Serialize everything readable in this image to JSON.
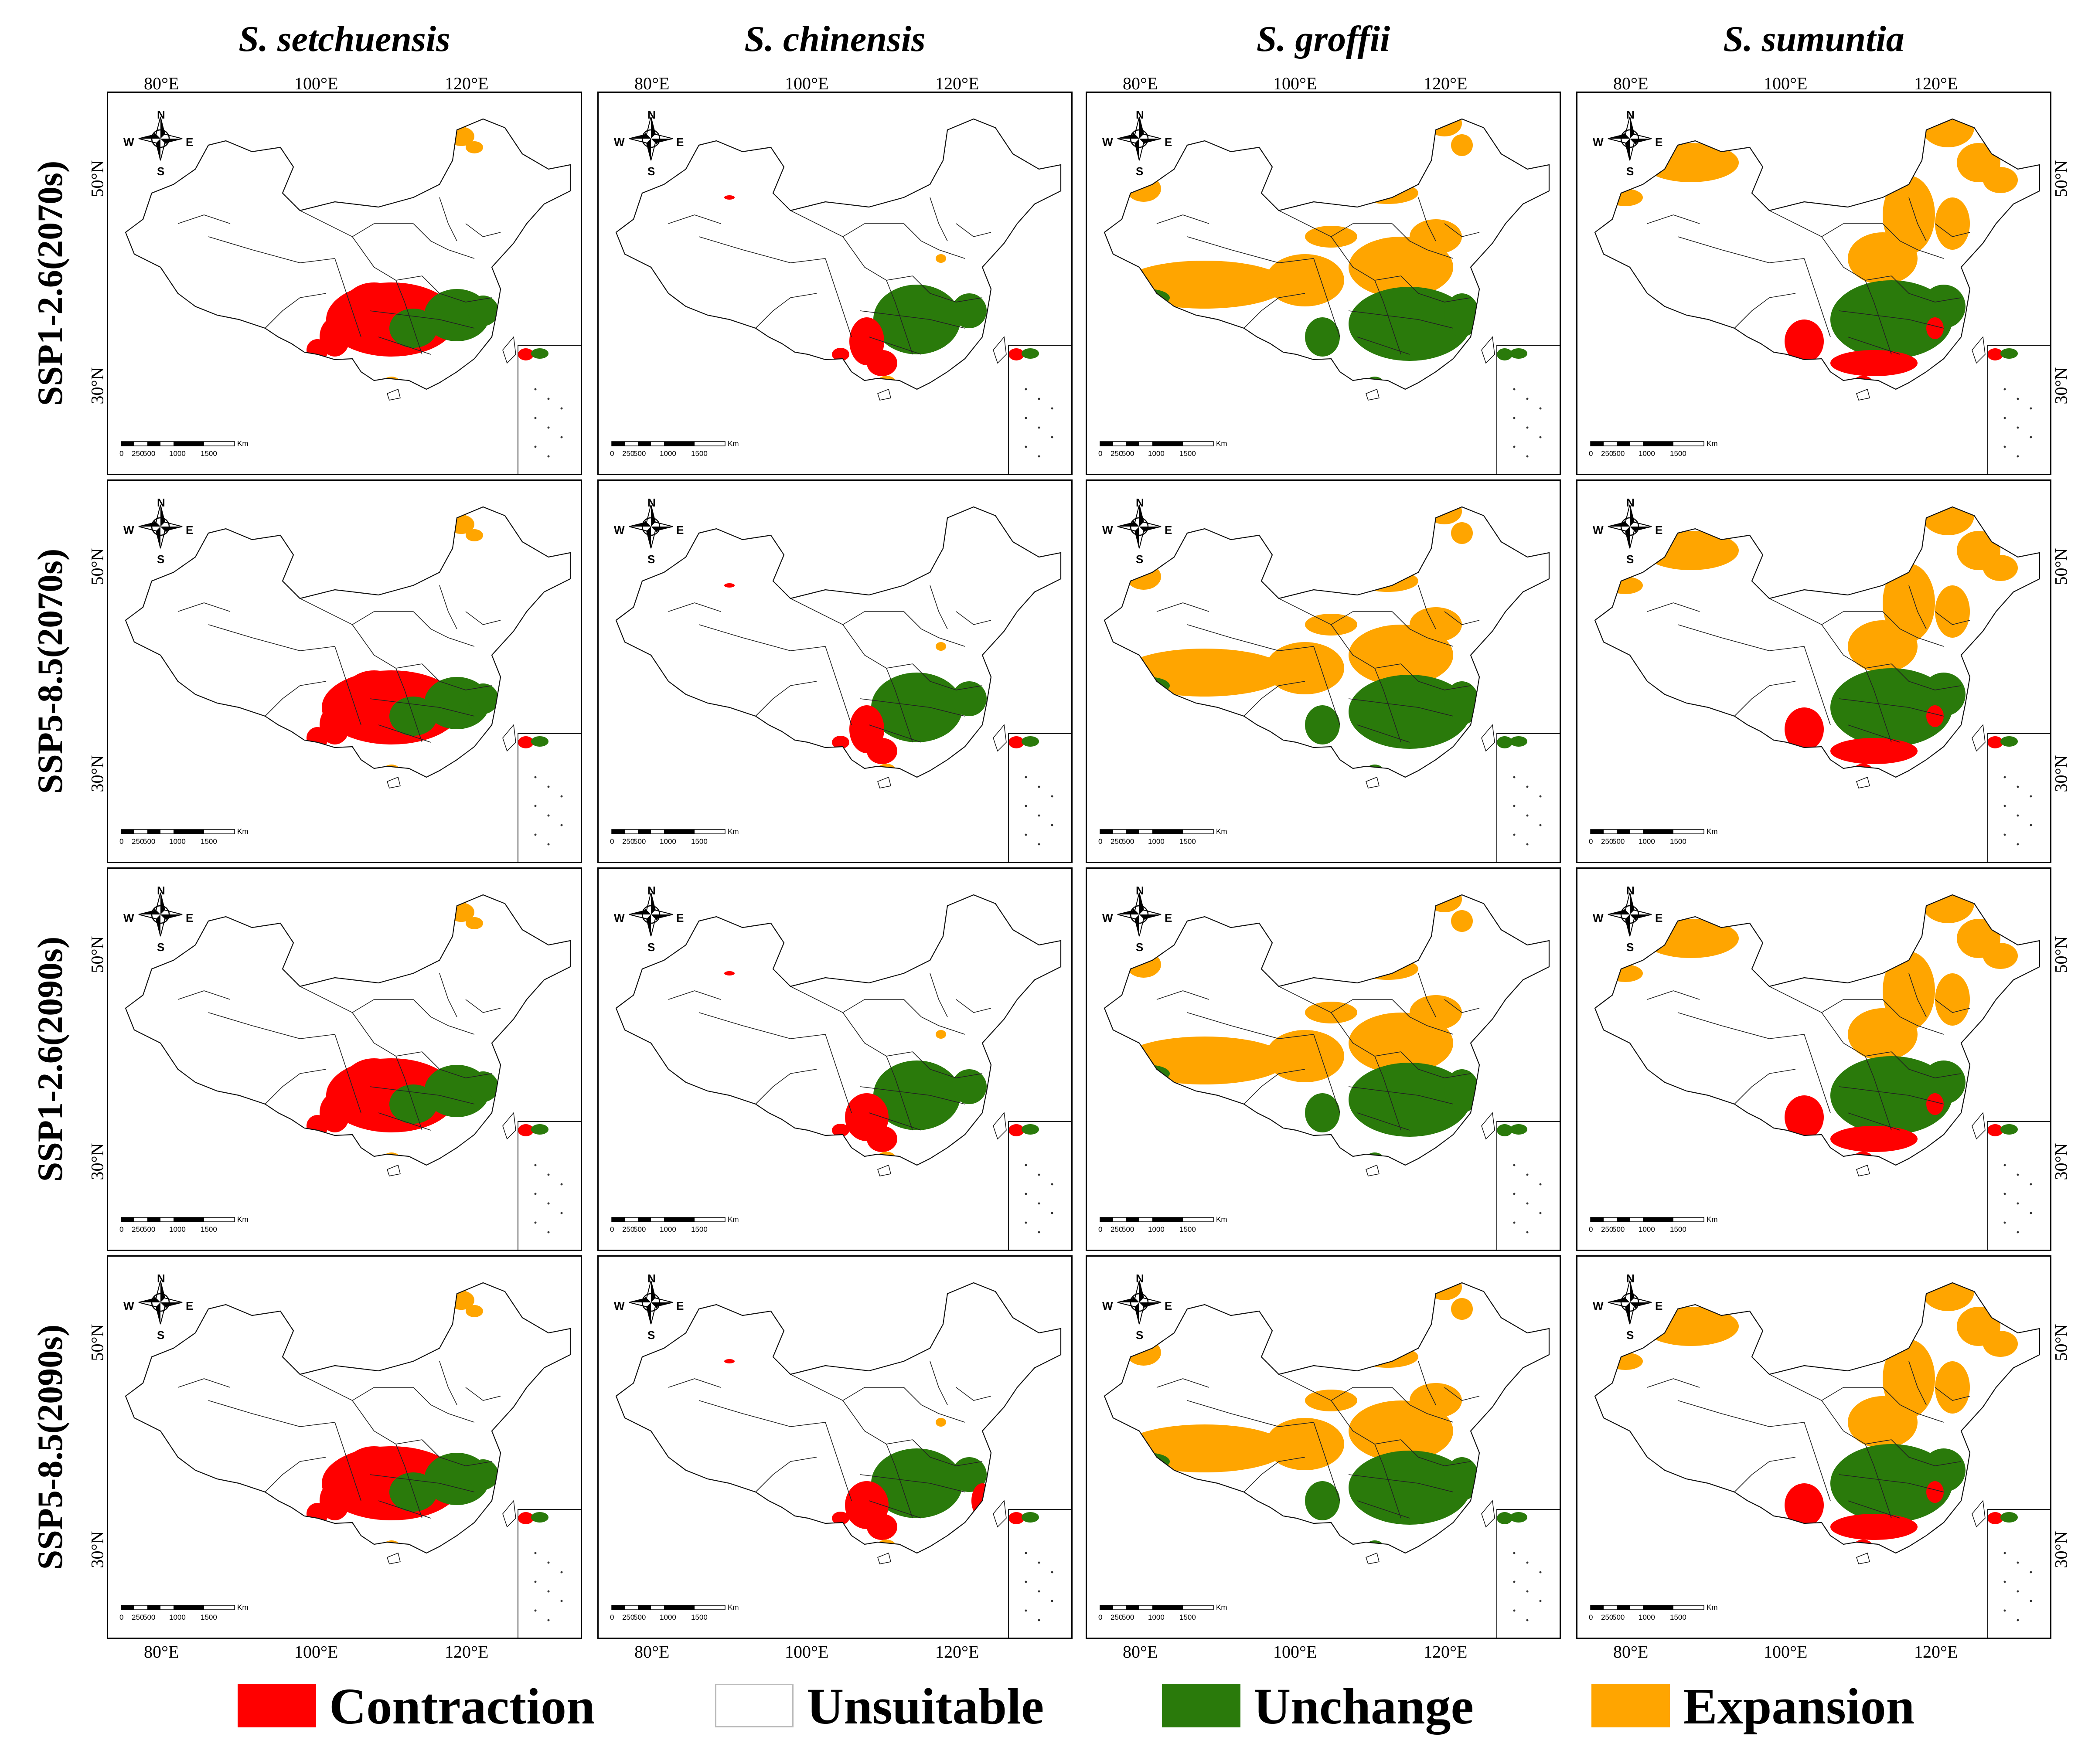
{
  "figure": {
    "columns": [
      {
        "species": "S. setchuensis"
      },
      {
        "species": "S. chinensis"
      },
      {
        "species": "S. groffii"
      },
      {
        "species": "S. sumuntia"
      }
    ],
    "rows": [
      {
        "scenario": "SSP1-2.6(2070s)"
      },
      {
        "scenario": "SSP5-8.5(2070s)"
      },
      {
        "scenario": "SSP1-2.6(2090s)"
      },
      {
        "scenario": "SSP5-8.5(2090s)"
      }
    ],
    "longitude_ticks": [
      "80°E",
      "100°E",
      "120°E"
    ],
    "latitude_ticks": [
      "50°N",
      "30°N"
    ],
    "compass": {
      "n": "N",
      "s": "S",
      "e": "E",
      "w": "W"
    },
    "scale_bar": {
      "unit": "Km",
      "labels": [
        "0",
        "250",
        "500",
        "1000",
        "1500"
      ]
    },
    "legend": [
      {
        "label": "Contraction",
        "color": "#ff0000"
      },
      {
        "label": "Unsuitable",
        "color": "#ffffff"
      },
      {
        "label": "Unchange",
        "color": "#2a7a0b"
      },
      {
        "label": "Expansion",
        "color": "#ffa500"
      }
    ]
  }
}
